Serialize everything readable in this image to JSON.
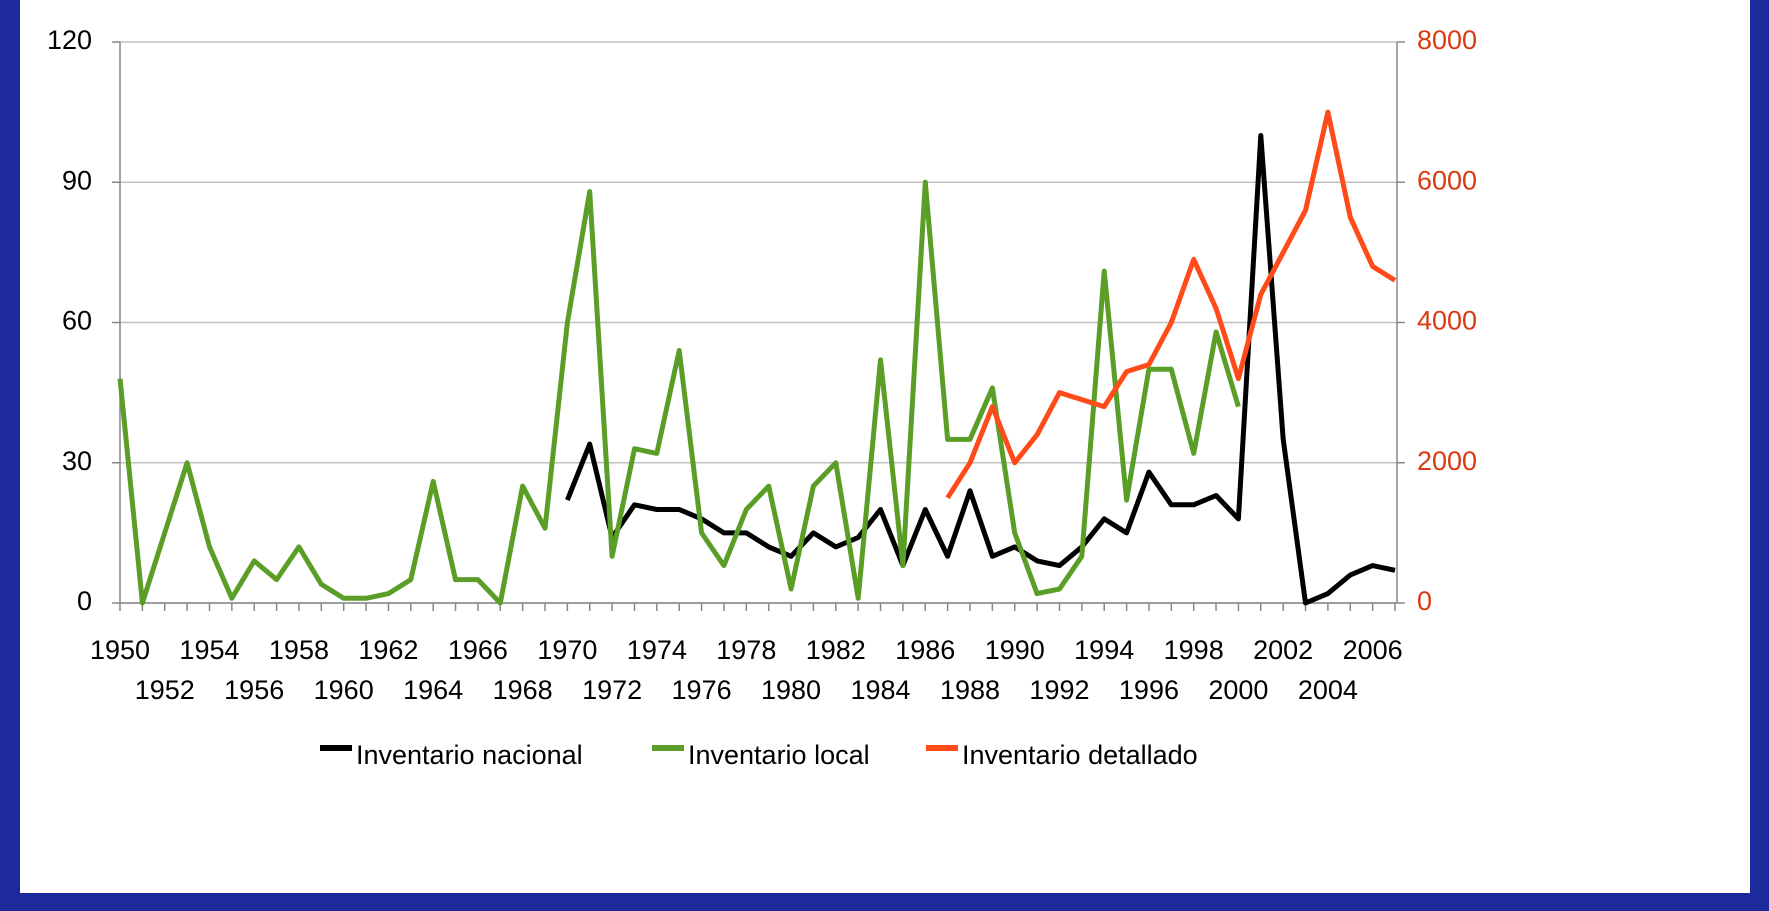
{
  "chart_data": {
    "type": "line",
    "categories": [
      "1950",
      null,
      "1952",
      null,
      "1954",
      null,
      "1956",
      null,
      "1958",
      null,
      "1960",
      null,
      "1962",
      null,
      "1964",
      null,
      "1966",
      null,
      "1968",
      null,
      "1970",
      null,
      "1972",
      null,
      "1974",
      null,
      "1976",
      null,
      "1978",
      null,
      "1980",
      null,
      "1982",
      null,
      "1984",
      null,
      "1986",
      null,
      "1988",
      null,
      "1990",
      null,
      "1992",
      null,
      "1994",
      null,
      "1996",
      null,
      "1998",
      null,
      "2000",
      null,
      "2002",
      null,
      "2004",
      null,
      "2006",
      null
    ],
    "series": [
      {
        "name": "Inventario nacional",
        "color": "#000000",
        "values": [
          null,
          null,
          null,
          null,
          null,
          null,
          null,
          null,
          null,
          null,
          null,
          null,
          null,
          null,
          null,
          null,
          null,
          null,
          null,
          null,
          22,
          34,
          14,
          21,
          20,
          20,
          18,
          15,
          15,
          12,
          10,
          15,
          12,
          14,
          20,
          8,
          20,
          10,
          24,
          10,
          12,
          9,
          8,
          12,
          18,
          15,
          28,
          21,
          21,
          23,
          18,
          100,
          35,
          0,
          2,
          6,
          8,
          7
        ]
      },
      {
        "name": "Inventario local",
        "color": "#5a9e28",
        "values": [
          48,
          0,
          15,
          30,
          12,
          1,
          9,
          5,
          12,
          4,
          1,
          1,
          2,
          5,
          26,
          5,
          5,
          0,
          25,
          16,
          60,
          88,
          10,
          33,
          32,
          54,
          15,
          8,
          20,
          25,
          3,
          25,
          30,
          1,
          52,
          8,
          90,
          35,
          35,
          46,
          15,
          2,
          3,
          10,
          71,
          22,
          50,
          50,
          32,
          58,
          42,
          null,
          null,
          null,
          null,
          null,
          null,
          null
        ]
      },
      {
        "name": "Inventario detallado",
        "color": "#ff4a1a",
        "axis": "y2",
        "values": [
          null,
          null,
          null,
          null,
          null,
          null,
          null,
          null,
          null,
          null,
          null,
          null,
          null,
          null,
          null,
          null,
          null,
          null,
          null,
          null,
          null,
          null,
          null,
          null,
          null,
          null,
          null,
          null,
          null,
          null,
          null,
          null,
          null,
          null,
          null,
          null,
          null,
          1500,
          2000,
          2800,
          2000,
          2400,
          3000,
          2900,
          2800,
          3300,
          3400,
          4000,
          4900,
          4200,
          3200,
          4400,
          5000,
          5600,
          7000,
          5500,
          4800,
          4600
        ]
      }
    ],
    "ylim": [
      0,
      120
    ],
    "yticks": [
      0,
      30,
      60,
      90,
      120
    ],
    "y2lim": [
      0,
      8000
    ],
    "y2ticks": [
      0,
      2000,
      4000,
      6000,
      8000
    ],
    "y2color": "#d93a10",
    "grid": true,
    "legend": "bottom"
  }
}
